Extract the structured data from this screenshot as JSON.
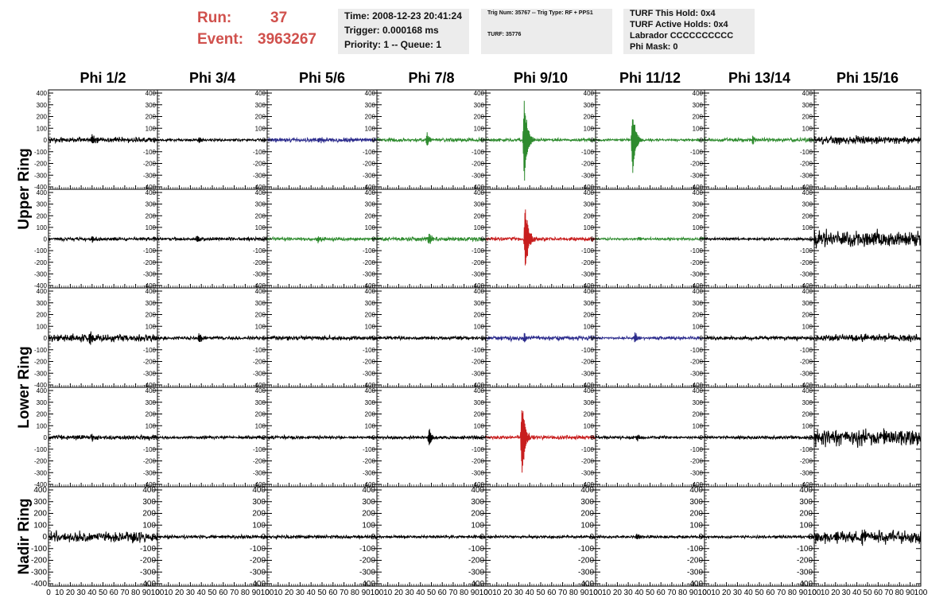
{
  "header": {
    "run_label": "Run:",
    "run_value": "37",
    "event_label": "Event:",
    "event_value": "3963267",
    "time_line": "Time: 2008-12-23 20:41:24",
    "trigger_line": "Trigger: 0.000168 ms",
    "priority_line": "Priority: 1 -- Queue: 1",
    "trig_num_line": "Trig Num: 35767 -- Trig Type: RF + PPS1",
    "turf_line": "TURF: 35776",
    "turf_hold_line": "TURF This Hold: 0x4",
    "turf_active_line": "TURF Active Holds: 0x4",
    "labrador_line": "Labrador CCCCCCCCCC",
    "phi_mask_line": "Phi Mask: 0"
  },
  "colors": {
    "run_text": "#d0504c",
    "info_background": "#ececec",
    "trace_black": "#000000",
    "trace_green": "#2e8b2e",
    "trace_blue": "#2b2b8c",
    "trace_red": "#c81e1e"
  },
  "chart_data": {
    "type": "line",
    "title": "",
    "columns": [
      "Phi 1/2",
      "Phi 3/4",
      "Phi 5/6",
      "Phi 7/8",
      "Phi 9/10",
      "Phi 11/12",
      "Phi 13/14",
      "Phi 15/16"
    ],
    "ring_labels": [
      {
        "label": "Upper Ring",
        "rows": [
          0,
          1
        ]
      },
      {
        "label": "Lower Ring",
        "rows": [
          2,
          3
        ]
      },
      {
        "label": "Nadir Ring",
        "rows": [
          4
        ]
      }
    ],
    "xlim": [
      0,
      100
    ],
    "x_ticks": [
      0,
      10,
      20,
      30,
      40,
      50,
      60,
      70,
      80,
      90,
      100
    ],
    "ylim": [
      -400,
      400
    ],
    "y_ticks": [
      -400,
      -300,
      -200,
      -100,
      0,
      100,
      200,
      300,
      400
    ],
    "grid": false,
    "rows": [
      [
        {
          "color": "black",
          "noise": 14,
          "pulse_at": 40,
          "pulse_amp": 45
        },
        {
          "color": "black",
          "noise": 7,
          "pulse_at": 38,
          "pulse_amp": 30
        },
        {
          "color": "blue",
          "noise": 12,
          "pulse_at": 47,
          "pulse_amp": 25
        },
        {
          "color": "green",
          "noise": 10,
          "pulse_at": 46,
          "pulse_amp": 55
        },
        {
          "color": "green",
          "noise": 9,
          "pulse_at": 35,
          "pulse_amp": 390
        },
        {
          "color": "green",
          "noise": 7,
          "pulse_at": 34,
          "pulse_amp": 300
        },
        {
          "color": "green",
          "noise": 10,
          "pulse_at": 44,
          "pulse_amp": 30
        },
        {
          "color": "black",
          "noise": 22,
          "pulse_at": null,
          "pulse_amp": 0
        }
      ],
      [
        {
          "color": "black",
          "noise": 10,
          "pulse_at": 40,
          "pulse_amp": 30
        },
        {
          "color": "black",
          "noise": 10,
          "pulse_at": 36,
          "pulse_amp": 30
        },
        {
          "color": "green",
          "noise": 10,
          "pulse_at": 46,
          "pulse_amp": 35
        },
        {
          "color": "green",
          "noise": 12,
          "pulse_at": 48,
          "pulse_amp": 55
        },
        {
          "color": "red",
          "noise": 11,
          "pulse_at": 36,
          "pulse_amp": 330
        },
        {
          "color": "green",
          "noise": 7,
          "pulse_at": 40,
          "pulse_amp": 20
        },
        {
          "color": "black",
          "noise": 7,
          "pulse_at": null,
          "pulse_amp": 0
        },
        {
          "color": "black",
          "noise": 45,
          "pulse_at": null,
          "pulse_amp": 0
        }
      ],
      [
        {
          "color": "black",
          "noise": 20,
          "pulse_at": 38,
          "pulse_amp": 60
        },
        {
          "color": "black",
          "noise": 9,
          "pulse_at": 38,
          "pulse_amp": 40
        },
        {
          "color": "black",
          "noise": 12,
          "pulse_at": null,
          "pulse_amp": 0
        },
        {
          "color": "black",
          "noise": 10,
          "pulse_at": null,
          "pulse_amp": 0
        },
        {
          "color": "blue",
          "noise": 12,
          "pulse_at": 35,
          "pulse_amp": 40
        },
        {
          "color": "blue",
          "noise": 8,
          "pulse_at": 36,
          "pulse_amp": 50
        },
        {
          "color": "black",
          "noise": 11,
          "pulse_at": null,
          "pulse_amp": 0
        },
        {
          "color": "black",
          "noise": 20,
          "pulse_at": null,
          "pulse_amp": 0
        }
      ],
      [
        {
          "color": "black",
          "noise": 13,
          "pulse_at": 40,
          "pulse_amp": 30
        },
        {
          "color": "black",
          "noise": 8,
          "pulse_at": null,
          "pulse_amp": 0
        },
        {
          "color": "black",
          "noise": 9,
          "pulse_at": null,
          "pulse_amp": 0
        },
        {
          "color": "black",
          "noise": 9,
          "pulse_at": 48,
          "pulse_amp": 80
        },
        {
          "color": "red",
          "noise": 12,
          "pulse_at": 33,
          "pulse_amp": 340
        },
        {
          "color": "black",
          "noise": 8,
          "pulse_at": 38,
          "pulse_amp": 30
        },
        {
          "color": "black",
          "noise": 9,
          "pulse_at": null,
          "pulse_amp": 0
        },
        {
          "color": "black",
          "noise": 45,
          "pulse_at": null,
          "pulse_amp": 0
        }
      ],
      [
        {
          "color": "black",
          "noise": 28,
          "pulse_at": null,
          "pulse_amp": 0
        },
        {
          "color": "black",
          "noise": 9,
          "pulse_at": null,
          "pulse_amp": 0
        },
        {
          "color": "black",
          "noise": 9,
          "pulse_at": null,
          "pulse_amp": 0
        },
        {
          "color": "black",
          "noise": 8,
          "pulse_at": null,
          "pulse_amp": 0
        },
        {
          "color": "black",
          "noise": 8,
          "pulse_at": null,
          "pulse_amp": 0
        },
        {
          "color": "black",
          "noise": 8,
          "pulse_at": 38,
          "pulse_amp": 30
        },
        {
          "color": "black",
          "noise": 8,
          "pulse_at": null,
          "pulse_amp": 0
        },
        {
          "color": "black",
          "noise": 35,
          "pulse_at": 45,
          "pulse_amp": 60
        }
      ]
    ]
  }
}
